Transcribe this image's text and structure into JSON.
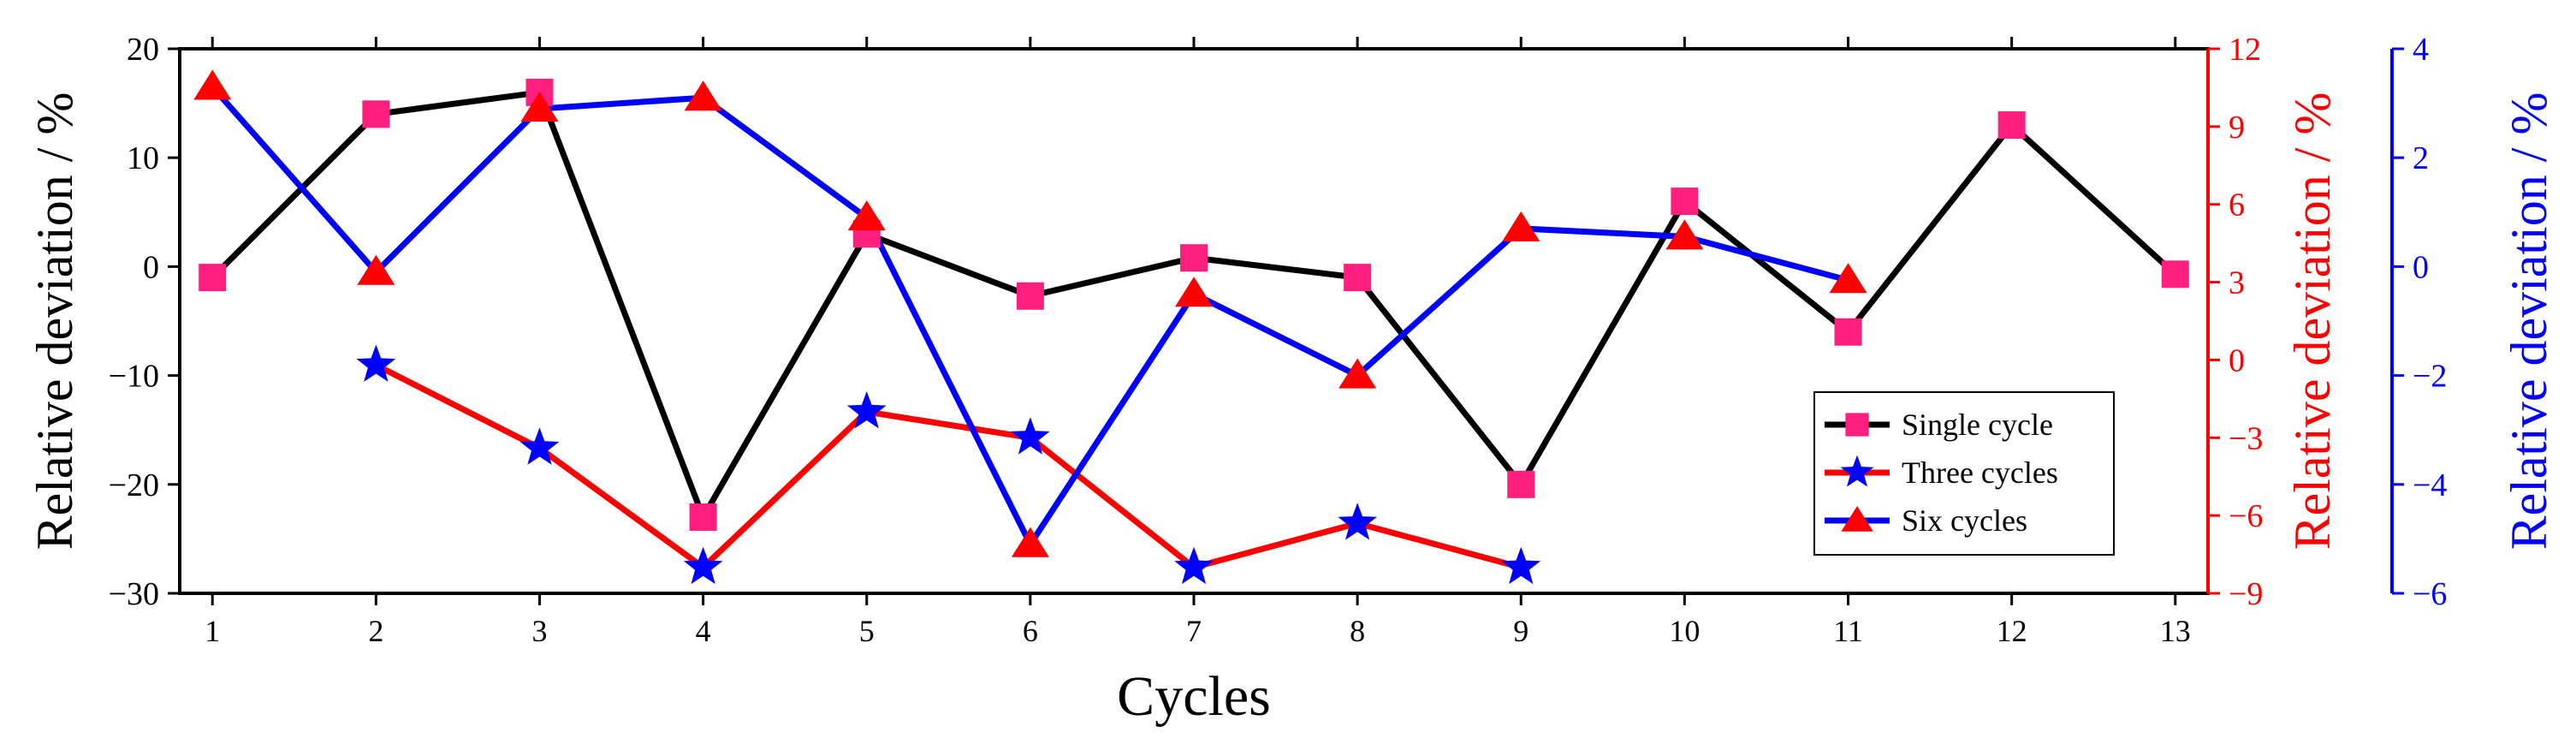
{
  "chart_data": {
    "type": "line",
    "x": [
      1,
      2,
      3,
      4,
      5,
      6,
      7,
      8,
      9,
      10,
      11,
      12,
      13
    ],
    "xlabel": "Cycles",
    "xlim": [
      0.8,
      13.2
    ],
    "x_ticks": [
      "1",
      "2",
      "3",
      "4",
      "5",
      "6",
      "7",
      "8",
      "9",
      "10",
      "11",
      "12",
      "13"
    ],
    "grid": false,
    "legend_position": "bottom-right",
    "axes": {
      "left": {
        "label": "Relative deviation / %",
        "ylim": [
          -30,
          20
        ],
        "ticks": [
          -30,
          -20,
          -10,
          0,
          10,
          20
        ],
        "tick_labels": [
          "−30",
          "−20",
          "−10",
          "0",
          "10",
          "20"
        ],
        "color": "#000000"
      },
      "right1": {
        "label": "Relative deviation / %",
        "ylim": [
          -9,
          12
        ],
        "ticks": [
          -9,
          -6,
          -3,
          0,
          3,
          6,
          9,
          12
        ],
        "tick_labels": [
          "−9",
          "−6",
          "−3",
          "0",
          "3",
          "6",
          "9",
          "12"
        ],
        "color": "#ff0000"
      },
      "right2": {
        "label": "Relative deviation / %",
        "ylim": [
          -6,
          4
        ],
        "ticks": [
          -6,
          -4,
          -2,
          0,
          2,
          4
        ],
        "tick_labels": [
          "−6",
          "−4",
          "−2",
          "0",
          "2",
          "4"
        ],
        "color": "#0000ff"
      }
    },
    "series": [
      {
        "name": "Single cycle",
        "axis": "left",
        "line_color": "#000000",
        "marker": "square",
        "marker_color": "#ff1f7f",
        "x": [
          1,
          2,
          3,
          4,
          5,
          6,
          7,
          8,
          9,
          10,
          11,
          12,
          13
        ],
        "values": [
          -1,
          14,
          16,
          -23,
          3,
          -2.7,
          0.8,
          -1,
          -20,
          6,
          -6,
          13,
          -0.7
        ]
      },
      {
        "name": "Three cycles",
        "axis": "right1",
        "line_color": "#ff0000",
        "marker": "star",
        "marker_color": "#0000ff",
        "x": [
          2,
          3,
          4,
          5,
          6,
          7,
          8,
          9
        ],
        "values": [
          -0.2,
          -3.4,
          -8.0,
          -2.0,
          -3.0,
          -8.0,
          -6.3,
          -8.0
        ]
      },
      {
        "name": "Six cycles",
        "axis": "right2",
        "line_color": "#0000ff",
        "marker": "triangle",
        "marker_color": "#ff0000",
        "x": [
          1,
          2,
          3,
          4,
          5,
          6,
          7,
          8,
          9,
          10,
          11
        ],
        "values": [
          3.3,
          -0.1,
          2.9,
          3.1,
          0.9,
          -5.1,
          -0.5,
          -2.0,
          0.7,
          0.55,
          -0.25
        ]
      }
    ]
  }
}
